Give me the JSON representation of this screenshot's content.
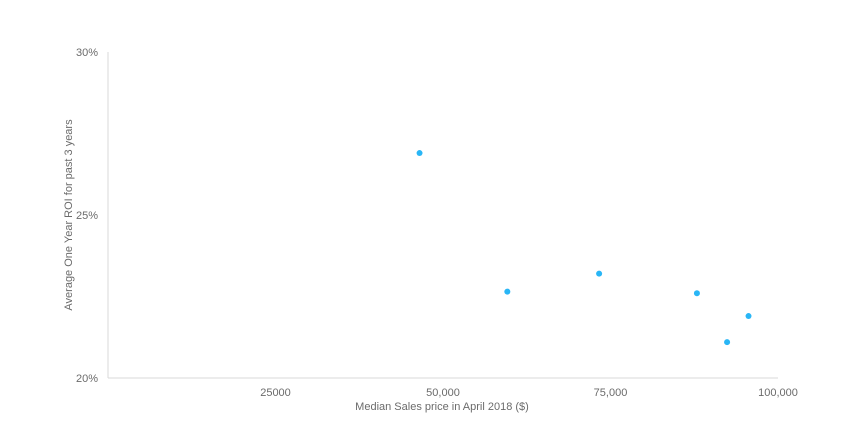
{
  "chart_data": {
    "type": "scatter",
    "title": "",
    "xlabel": "Median Sales price in April 2018 ($)",
    "ylabel": "Average One Year ROI for past 3 years",
    "xlim": [
      0,
      100000
    ],
    "ylim": [
      20,
      30
    ],
    "x_ticks": [
      {
        "value": 25000,
        "label": "25000"
      },
      {
        "value": 50000,
        "label": "50,000"
      },
      {
        "value": 75000,
        "label": "75,000"
      },
      {
        "value": 100000,
        "label": "100,000"
      }
    ],
    "y_ticks": [
      {
        "value": 20,
        "label": "20%"
      },
      {
        "value": 25,
        "label": "25%"
      },
      {
        "value": 30,
        "label": "30%"
      }
    ],
    "grid": false,
    "legend": "none",
    "marker_color": "#29b6f6",
    "axis_color": "#d9d9d9",
    "points": [
      {
        "x": 46500,
        "y": 26.9
      },
      {
        "x": 59600,
        "y": 22.65
      },
      {
        "x": 73300,
        "y": 23.2
      },
      {
        "x": 87900,
        "y": 22.6
      },
      {
        "x": 92400,
        "y": 21.1
      },
      {
        "x": 95600,
        "y": 21.9
      }
    ]
  }
}
